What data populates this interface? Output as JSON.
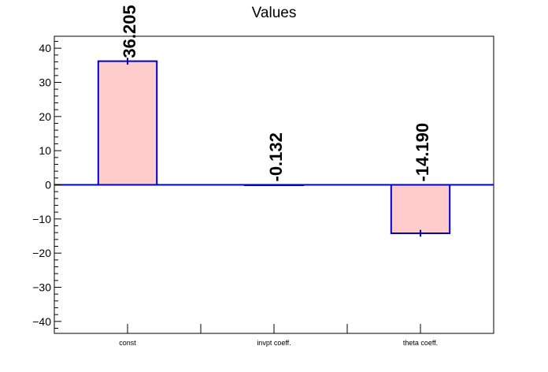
{
  "chart_data": {
    "type": "bar",
    "title": "Values",
    "xlabel": "",
    "ylabel": "",
    "categories": [
      "const",
      "invpt coeff.",
      "theta coeff."
    ],
    "values": [
      36.205,
      -0.132,
      -14.19
    ],
    "value_labels": [
      "36.205",
      "-0.132",
      "-14.190"
    ],
    "errors": [
      1.0,
      0.2,
      1.0
    ],
    "ylim": [
      -43.5,
      43.5
    ],
    "yticks": [
      -40,
      -30,
      -20,
      -10,
      0,
      10,
      20,
      30,
      40
    ],
    "ytick_labels": [
      "−40",
      "−30",
      "−20",
      "−10",
      "0",
      "10",
      "20",
      "30",
      "40"
    ],
    "grid": false,
    "legend": "none"
  },
  "colors": {
    "bar_fill": "#ffcccc",
    "bar_edge": "#0000cc",
    "axis": "#000000",
    "text": "#000000"
  }
}
